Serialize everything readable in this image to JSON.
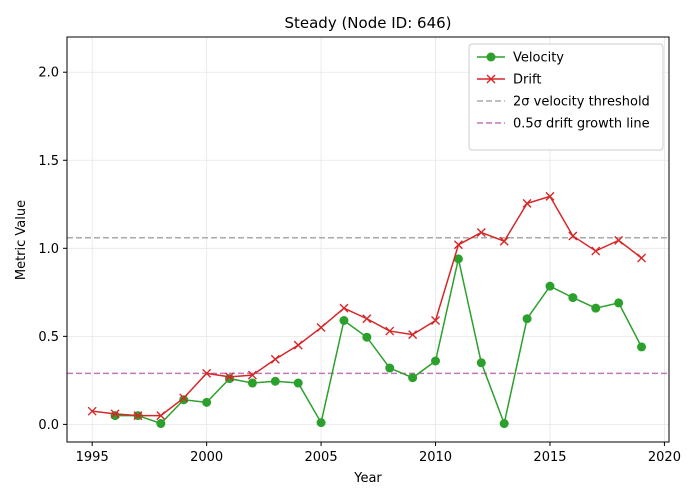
{
  "chart_data": {
    "type": "line",
    "title": "Steady (Node ID: 646)",
    "xlabel": "Year",
    "ylabel": "Metric Value",
    "xlim": [
      1993.9,
      2020.2
    ],
    "ylim": [
      -0.1,
      2.2
    ],
    "xticks": [
      "1995",
      "2000",
      "2005",
      "2010",
      "2015",
      "2020"
    ],
    "yticks": [
      "0.0",
      "0.5",
      "1.0",
      "1.5",
      "2.0"
    ],
    "grid": true,
    "legend_position": "top-right",
    "series": [
      {
        "name": "Velocity",
        "color": "#2ca02c",
        "marker": "circle",
        "x": [
          1996,
          1997,
          1998,
          1999,
          2000,
          2001,
          2002,
          2003,
          2004,
          2005,
          2006,
          2007,
          2008,
          2009,
          2010,
          2011,
          2012,
          2013,
          2014,
          2015,
          2016,
          2017,
          2018,
          2019
        ],
        "values": [
          0.05,
          0.05,
          0.005,
          0.14,
          0.125,
          0.26,
          0.235,
          0.245,
          0.235,
          0.01,
          0.59,
          0.495,
          0.32,
          0.265,
          0.36,
          0.94,
          0.35,
          0.005,
          0.6,
          0.785,
          0.72,
          0.66,
          0.69,
          0.44
        ]
      },
      {
        "name": "Drift",
        "color": "#d62728",
        "marker": "x",
        "x": [
          1995,
          1996,
          1997,
          1998,
          1999,
          2000,
          2001,
          2002,
          2003,
          2004,
          2005,
          2006,
          2007,
          2008,
          2009,
          2010,
          2011,
          2012,
          2013,
          2014,
          2015,
          2016,
          2017,
          2018,
          2019
        ],
        "values": [
          0.075,
          0.06,
          0.05,
          0.05,
          0.15,
          0.29,
          0.27,
          0.28,
          0.37,
          0.45,
          0.55,
          0.66,
          0.6,
          0.53,
          0.51,
          0.59,
          1.02,
          1.09,
          1.04,
          1.255,
          1.295,
          1.07,
          0.985,
          1.045,
          0.945
        ]
      }
    ],
    "reference_lines": [
      {
        "name": "2σ velocity threshold",
        "y": 1.06,
        "color": "#aaaaaa"
      },
      {
        "name": "0.5σ drift growth line",
        "y": 0.29,
        "color": "#c576b5"
      }
    ]
  }
}
